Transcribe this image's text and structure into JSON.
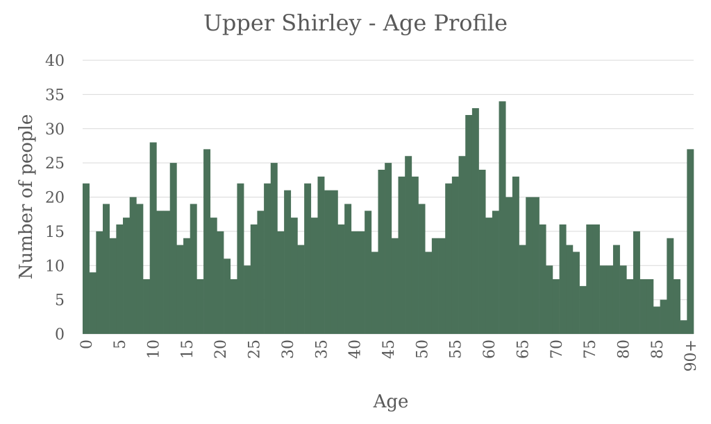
{
  "chart_data": {
    "type": "bar",
    "title": "Upper Shirley - Age Profile",
    "xlabel": "Age",
    "ylabel": "Number of people",
    "ylim": [
      0,
      40
    ],
    "yticks": [
      "0",
      "5",
      "10",
      "15",
      "20",
      "25",
      "30",
      "35",
      "40"
    ],
    "xtick_labels": [
      "0",
      "5",
      "10",
      "15",
      "20",
      "25",
      "30",
      "35",
      "40",
      "45",
      "50",
      "55",
      "60",
      "65",
      "70",
      "75",
      "80",
      "85",
      "90+"
    ],
    "grid": true,
    "bar_color": "#4a7159",
    "categories": [
      "0",
      "1",
      "2",
      "3",
      "4",
      "5",
      "6",
      "7",
      "8",
      "9",
      "10",
      "11",
      "12",
      "13",
      "14",
      "15",
      "16",
      "17",
      "18",
      "19",
      "20",
      "21",
      "22",
      "23",
      "24",
      "25",
      "26",
      "27",
      "28",
      "29",
      "30",
      "31",
      "32",
      "33",
      "34",
      "35",
      "36",
      "37",
      "38",
      "39",
      "40",
      "41",
      "42",
      "43",
      "44",
      "45",
      "46",
      "47",
      "48",
      "49",
      "50",
      "51",
      "52",
      "53",
      "54",
      "55",
      "56",
      "57",
      "58",
      "59",
      "60",
      "61",
      "62",
      "63",
      "64",
      "65",
      "66",
      "67",
      "68",
      "69",
      "70",
      "71",
      "72",
      "73",
      "74",
      "75",
      "76",
      "77",
      "78",
      "79",
      "80",
      "81",
      "82",
      "83",
      "84",
      "85",
      "86",
      "87",
      "88",
      "89",
      "90+"
    ],
    "values": [
      22,
      9,
      15,
      19,
      14,
      16,
      17,
      20,
      19,
      8,
      28,
      18,
      18,
      25,
      13,
      14,
      19,
      8,
      27,
      17,
      15,
      11,
      8,
      22,
      10,
      16,
      18,
      22,
      25,
      15,
      21,
      17,
      13,
      22,
      17,
      23,
      21,
      21,
      16,
      19,
      15,
      15,
      18,
      12,
      24,
      25,
      14,
      23,
      26,
      23,
      19,
      12,
      14,
      14,
      22,
      23,
      26,
      32,
      33,
      24,
      17,
      18,
      34,
      20,
      23,
      13,
      20,
      20,
      16,
      10,
      8,
      16,
      13,
      12,
      7,
      16,
      16,
      10,
      10,
      13,
      10,
      8,
      15,
      8,
      8,
      4,
      5,
      14,
      8,
      2,
      27
    ]
  }
}
